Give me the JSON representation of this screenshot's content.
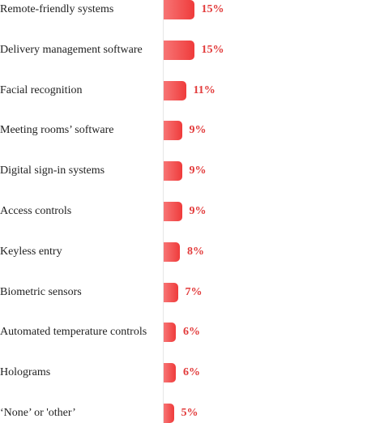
{
  "chart_data": {
    "type": "bar",
    "orientation": "horizontal",
    "categories": [
      "Remote-friendly systems",
      "Delivery management software",
      "Facial recognition",
      "Meeting rooms’ software",
      "Digital sign-in systems",
      "Access controls",
      "Keyless entry",
      "Biometric sensors",
      "Automated temperature controls",
      "Holograms",
      "‘None’ or 'other’"
    ],
    "values": [
      15,
      15,
      11,
      9,
      9,
      9,
      8,
      7,
      6,
      6,
      5
    ],
    "value_labels": [
      "15%",
      "15%",
      "11%",
      "9%",
      "9%",
      "9%",
      "8%",
      "7%",
      "6%",
      "6%",
      "5%"
    ],
    "colors": {
      "bar_start": "#f77575",
      "bar_end": "#ef3b3b",
      "value_text": "#e23b3b",
      "category_text": "#222222"
    },
    "grid": false,
    "legend": "none"
  }
}
